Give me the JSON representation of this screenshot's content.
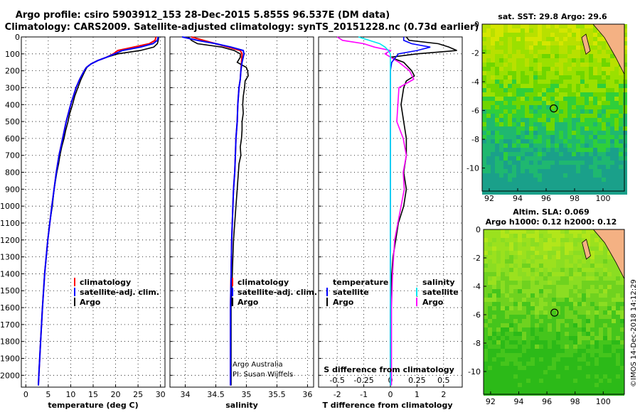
{
  "header": {
    "title_line1": "Argo profile: csiro 5903912_153 28-Dec-2015 5.855S 96.537E (DM data)",
    "title_line2": "Climatology: CARS2009. Satellite-adjusted climatology: synTS_20151228.nc (0.73d earlier)"
  },
  "colors": {
    "climatology": "#ff0000",
    "satellite": "#0000ff",
    "argo": "#000000",
    "salinity_satellite": "#00e5ee",
    "salinity_argo": "#ff00ff"
  },
  "legends": {
    "temperature": [
      "climatology",
      "satellite-adj. clim.",
      "Argo"
    ],
    "salinity": [
      "climatology",
      "satellite-adj. clim.",
      "Argo"
    ],
    "diff_temperature_title": "temperature",
    "diff_salinity_title": "salinity",
    "diff_temperature": [
      "satellite",
      "Argo"
    ],
    "diff_salinity": [
      "satellite",
      "Argo"
    ]
  },
  "credits": {
    "line1": "Argo Australia",
    "line2": "PI: Susan Wijffels",
    "stamp": "©IMOS 14-Dec-2018 14:12:29"
  },
  "maps": {
    "sst_title": "sat. SST: 29.8 Argo: 29.6",
    "sla_title_line1": "Altim. SLA: 0.069",
    "sla_title_line2": "Argo h1000: 0.12 h2000: 0.12",
    "lon_ticks": [
      "92",
      "94",
      "96",
      "98",
      "100"
    ],
    "lat_ticks": [
      "0",
      "-2",
      "-4",
      "-6",
      "-8",
      "-10"
    ],
    "float_position": {
      "lon": 96.537,
      "lat": -5.855
    },
    "lon_range": [
      91.5,
      101.5
    ],
    "lat_range": [
      -11.6,
      0
    ]
  },
  "chart_data": [
    {
      "type": "line",
      "panel": "temperature",
      "xlabel": "temperature (deg C)",
      "ylabel": "",
      "xlim": [
        -1,
        31
      ],
      "ylim": [
        2070,
        0
      ],
      "x_ticks": [
        "0",
        "5",
        "10",
        "15",
        "20",
        "25",
        "30"
      ],
      "y_ticks": [
        "0",
        "100",
        "200",
        "300",
        "400",
        "500",
        "600",
        "700",
        "800",
        "900",
        "1000",
        "1100",
        "1200",
        "1300",
        "1400",
        "1500",
        "1600",
        "1700",
        "1800",
        "1900",
        "2000"
      ],
      "grid": true,
      "series": [
        {
          "name": "climatology",
          "depth": [
            0,
            20,
            40,
            60,
            80,
            100,
            120,
            140,
            160,
            180,
            200,
            250,
            300,
            400,
            500,
            600,
            700,
            800,
            1000,
            1200,
            1400,
            1600,
            1800,
            2000,
            2060
          ],
          "values": [
            29.0,
            28.8,
            27.5,
            24.0,
            20.5,
            19.5,
            18.0,
            16.0,
            14.5,
            13.5,
            13.0,
            12.0,
            11.2,
            10.0,
            9.0,
            8.2,
            7.4,
            6.8,
            5.8,
            4.9,
            4.2,
            3.7,
            3.3,
            2.9,
            2.8
          ]
        },
        {
          "name": "satellite-adj. clim.",
          "depth": [
            0,
            20,
            40,
            60,
            80,
            100,
            120,
            140,
            160,
            180,
            200,
            250,
            300,
            400,
            500,
            600,
            700,
            800,
            1000,
            1200,
            1400,
            1600,
            1800,
            2000,
            2060
          ],
          "values": [
            29.5,
            29.3,
            28.3,
            25.5,
            21.5,
            19.8,
            18.0,
            16.0,
            14.5,
            13.5,
            13.0,
            12.0,
            11.2,
            10.0,
            9.0,
            8.2,
            7.4,
            6.8,
            5.8,
            4.9,
            4.2,
            3.7,
            3.3,
            2.9,
            2.8
          ]
        },
        {
          "name": "Argo",
          "depth": [
            0,
            20,
            40,
            60,
            80,
            100,
            120,
            140,
            160,
            180,
            200,
            250,
            300,
            350,
            400,
            450,
            500,
            550,
            600,
            650,
            700,
            750,
            800,
            900,
            1000,
            1100,
            1200,
            1400,
            1600,
            1800,
            2000,
            2060
          ],
          "values": [
            29.6,
            29.5,
            29.3,
            28.5,
            25.5,
            20.5,
            18.0,
            16.0,
            14.5,
            13.6,
            13.2,
            12.3,
            11.6,
            10.9,
            10.4,
            9.8,
            9.4,
            8.9,
            8.5,
            8.0,
            7.6,
            7.3,
            6.9,
            6.3,
            5.9,
            5.3,
            4.9,
            4.2,
            3.7,
            3.3,
            2.9,
            2.8
          ]
        }
      ]
    },
    {
      "type": "line",
      "panel": "salinity",
      "xlabel": "salinity",
      "xlim": [
        33.75,
        36.1
      ],
      "ylim": [
        2070,
        0
      ],
      "x_ticks": [
        "34",
        "34.5",
        "35",
        "35.5",
        "36"
      ],
      "grid": true,
      "series": [
        {
          "name": "climatology",
          "depth": [
            0,
            20,
            40,
            60,
            80,
            100,
            150,
            200,
            250,
            300,
            400,
            500,
            600,
            700,
            800,
            900,
            1000,
            1200,
            1400,
            1600,
            1800,
            2000,
            2060
          ],
          "values": [
            34.1,
            34.3,
            34.5,
            34.7,
            34.9,
            34.93,
            34.92,
            34.91,
            34.9,
            34.88,
            34.86,
            34.85,
            34.83,
            34.82,
            34.81,
            34.79,
            34.78,
            34.76,
            34.75,
            34.74,
            34.74,
            34.74,
            34.74
          ]
        },
        {
          "name": "satellite-adj. clim.",
          "depth": [
            0,
            20,
            40,
            60,
            80,
            100,
            150,
            200,
            250,
            300,
            400,
            500,
            600,
            700,
            800,
            900,
            1000,
            1200,
            1400,
            1600,
            1800,
            2000,
            2060
          ],
          "values": [
            33.95,
            34.2,
            34.5,
            34.75,
            34.95,
            34.96,
            34.93,
            34.91,
            34.9,
            34.88,
            34.86,
            34.85,
            34.83,
            34.82,
            34.81,
            34.79,
            34.78,
            34.76,
            34.75,
            34.74,
            34.74,
            34.74,
            34.74
          ]
        },
        {
          "name": "Argo",
          "depth": [
            0,
            20,
            40,
            60,
            80,
            100,
            120,
            150,
            180,
            200,
            230,
            260,
            300,
            350,
            400,
            450,
            500,
            550,
            600,
            650,
            700,
            750,
            800,
            850,
            900,
            950,
            1000,
            1100,
            1200,
            1300,
            1400,
            1600,
            1800,
            2000,
            2060
          ],
          "values": [
            34.05,
            34.1,
            34.2,
            34.6,
            34.8,
            34.9,
            34.9,
            34.85,
            35.0,
            35.02,
            35.03,
            34.98,
            34.97,
            34.95,
            34.94,
            34.95,
            34.93,
            34.93,
            34.92,
            34.9,
            34.91,
            34.88,
            34.87,
            34.86,
            34.85,
            34.84,
            34.83,
            34.81,
            34.79,
            34.78,
            34.77,
            34.75,
            34.75,
            34.75,
            34.75
          ]
        }
      ]
    },
    {
      "type": "line",
      "panel": "difference",
      "xlabel": "T difference from climatology",
      "x2label": "S difference from climatology",
      "xlim": [
        -2.7,
        2.7
      ],
      "ylim": [
        2070,
        0
      ],
      "x_ticks": [
        "-2",
        "-1",
        "0",
        "1",
        "2"
      ],
      "x2_ticks": [
        "-0.5",
        "-0.25",
        "0",
        "0.25",
        "0.5"
      ],
      "grid": true,
      "series": [
        {
          "name": "temperature satellite",
          "depth": [
            0,
            20,
            40,
            60,
            80,
            100,
            150,
            200,
            300,
            500,
            1000,
            2060
          ],
          "values": [
            0.5,
            0.5,
            0.8,
            1.5,
            1.0,
            0.3,
            0.05,
            0.0,
            0.0,
            0.0,
            0.0,
            0.0
          ]
        },
        {
          "name": "temperature Argo",
          "depth": [
            0,
            20,
            40,
            60,
            80,
            100,
            120,
            150,
            200,
            230,
            260,
            300,
            400,
            500,
            600,
            700,
            800,
            900,
            1000,
            1100,
            1200,
            1300,
            1400,
            1600,
            1800,
            2000,
            2060
          ],
          "values": [
            0.6,
            0.7,
            1.8,
            2.2,
            2.5,
            1.0,
            0.0,
            0.5,
            0.8,
            0.9,
            0.6,
            0.5,
            0.4,
            0.5,
            0.6,
            0.6,
            0.5,
            0.6,
            0.5,
            0.3,
            0.2,
            0.1,
            0.05,
            0.0,
            0.0,
            0.0,
            0.0
          ]
        },
        {
          "name": "salinity satellite",
          "depth": [
            0,
            20,
            40,
            60,
            80,
            100,
            150,
            200,
            300,
            500,
            1000,
            2060
          ],
          "values": [
            -0.3,
            -0.2,
            -0.1,
            -0.05,
            -0.02,
            0.0,
            0.0,
            0.0,
            0.0,
            0.0,
            0.0,
            0.0
          ]
        },
        {
          "name": "salinity Argo",
          "depth": [
            0,
            20,
            40,
            60,
            80,
            100,
            150,
            200,
            250,
            300,
            400,
            500,
            600,
            700,
            800,
            900,
            1000,
            1100,
            1200,
            1300,
            1400,
            1600,
            1800,
            2000,
            2060
          ],
          "values": [
            -0.5,
            -0.45,
            -0.25,
            -0.15,
            0.0,
            -0.05,
            0.08,
            0.18,
            0.22,
            0.08,
            0.07,
            0.06,
            0.12,
            0.15,
            0.12,
            0.13,
            0.1,
            0.07,
            0.04,
            0.03,
            0.02,
            0.01,
            0.01,
            0.01,
            0.01
          ]
        }
      ]
    }
  ]
}
